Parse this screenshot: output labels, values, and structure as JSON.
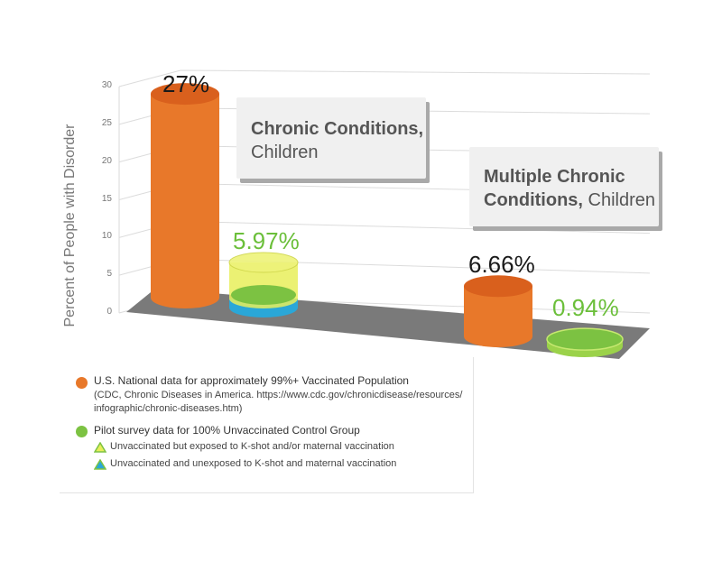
{
  "chart_data": {
    "type": "bar",
    "ylabel": "Percent of People with Disorder",
    "ylim": [
      0,
      30
    ],
    "yticks": [
      "0",
      "5",
      "10",
      "15",
      "20",
      "25",
      "30"
    ],
    "grid": true,
    "categories": [
      "Chronic Conditions, Children",
      "Multiple Chronic Conditions, Children"
    ],
    "category_labels": [
      {
        "bold": "Chronic Conditions,",
        "normal": "Children"
      },
      {
        "bold": "Multiple Chronic",
        "bold2": "Conditions,",
        "normal": "Children"
      }
    ],
    "series": [
      {
        "name": "U.S. National data for approximately 99%+ Vaccinated Population",
        "values": [
          27,
          6.66
        ],
        "labels": [
          "27%",
          "6.66%"
        ],
        "color": "#e8782a"
      },
      {
        "name": "Pilot survey data for 100% Unvaccinated Control Group",
        "values": [
          5.97,
          0.94
        ],
        "labels": [
          "5.97%",
          "0.94%"
        ],
        "color": "#7cc242"
      }
    ],
    "subgroups": [
      {
        "label": "Unvaccinated but exposed to K-shot and/or maternal vaccination",
        "color": "#e8ee5a"
      },
      {
        "label": "Unvaccinated and unexposed to K-shot and maternal vaccination",
        "color": "#2aa7d8"
      }
    ]
  },
  "legend": {
    "item1_title": "U.S. National data for approximately 99%+ Vaccinated Population",
    "item1_note_line1": "(CDC, Chronic Diseases in America. https://www.cdc.gov/chronicdisease/resources/",
    "item1_note_line2": "infographic/chronic-diseases.htm)",
    "item2_title": "Pilot survey data for 100% Unvaccinated Control Group",
    "sub1": "Unvaccinated but exposed to K-shot and/or maternal vaccination",
    "sub2": "Unvaccinated and unexposed to K-shot and maternal vaccination"
  },
  "colors": {
    "orange": "#e8782a",
    "green": "#7cc242",
    "yellow": "#e8ee5a",
    "blue": "#2aa7d8",
    "floor": "#7a7a7a"
  }
}
